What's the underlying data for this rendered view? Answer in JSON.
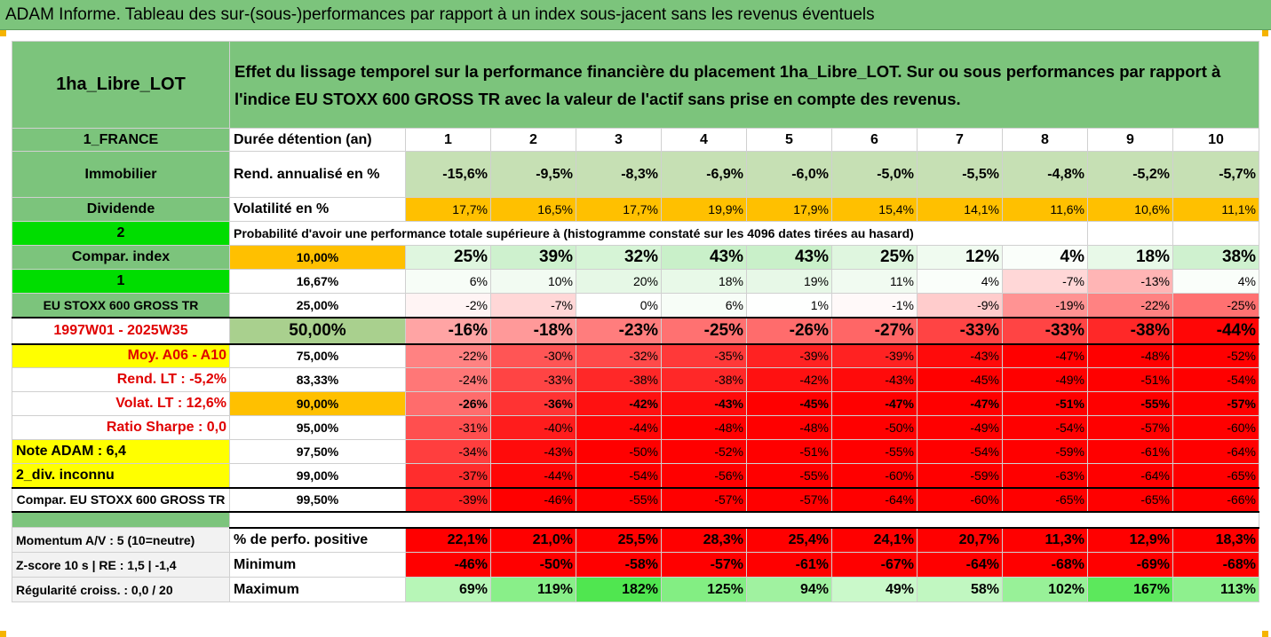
{
  "title": "ADAM Informe. Tableau des sur-(sous-)performances par rapport à un index sous-jacent sans les revenus éventuels",
  "header": {
    "name": "1ha_Libre_LOT",
    "description": "Effet du lissage temporel sur la performance financière du placement 1ha_Libre_LOT. Sur ou sous performances par rapport à l'indice EU STOXX 600 GROSS TR avec la valeur de l'actif sans prise en compte des revenus."
  },
  "colors": {
    "green": "#7cc47c",
    "light_green": "#c6e0b4",
    "bright_green": "#00dd00",
    "yellow": "#ffff00",
    "orange": "#ffc000",
    "red": "#ff0000"
  },
  "years_row": {
    "left": "1_FRANCE",
    "label": "Durée détention (an)",
    "values": [
      "1",
      "2",
      "3",
      "4",
      "5",
      "6",
      "7",
      "8",
      "9",
      "10"
    ]
  },
  "rend_row": {
    "left": "Immobilier",
    "label": "Rend. annualisé en %",
    "values": [
      "-15,6%",
      "-9,5%",
      "-8,3%",
      "-6,9%",
      "-6,0%",
      "-5,0%",
      "-5,5%",
      "-4,8%",
      "-5,2%",
      "-5,7%"
    ]
  },
  "vol_row": {
    "left": "Dividende",
    "label": "Volatilité en %",
    "values": [
      "17,7%",
      "16,5%",
      "17,7%",
      "19,9%",
      "17,9%",
      "15,4%",
      "14,1%",
      "11,6%",
      "10,6%",
      "11,1%"
    ]
  },
  "prob_row": {
    "left": "2",
    "text": "Probabilité d'avoir une performance totale supérieure à (histogramme constaté sur les 4096 dates tirées au hasard)"
  },
  "quantile_rows": [
    {
      "left": "Compar. index",
      "pct": "10,00%",
      "values": [
        "25%",
        "39%",
        "32%",
        "43%",
        "43%",
        "25%",
        "12%",
        "4%",
        "18%",
        "38%"
      ],
      "nums": [
        25,
        39,
        32,
        43,
        43,
        25,
        12,
        4,
        18,
        38
      ]
    },
    {
      "left": "1",
      "pct": "16,67%",
      "values": [
        "6%",
        "10%",
        "20%",
        "18%",
        "19%",
        "11%",
        "4%",
        "-7%",
        "-13%",
        "4%"
      ],
      "nums": [
        6,
        10,
        20,
        18,
        19,
        11,
        4,
        -7,
        -13,
        4
      ]
    },
    {
      "left": "EU STOXX 600 GROSS TR",
      "pct": "25,00%",
      "values": [
        "-2%",
        "-7%",
        "0%",
        "6%",
        "1%",
        "-1%",
        "-9%",
        "-19%",
        "-22%",
        "-25%"
      ],
      "nums": [
        -2,
        -7,
        0,
        6,
        1,
        -1,
        -9,
        -19,
        -22,
        -25
      ]
    },
    {
      "left": "1997W01 - 2025W35",
      "pct": "50,00%",
      "values": [
        "-16%",
        "-18%",
        "-23%",
        "-25%",
        "-26%",
        "-27%",
        "-33%",
        "-33%",
        "-38%",
        "-44%"
      ],
      "nums": [
        -16,
        -18,
        -23,
        -25,
        -26,
        -27,
        -33,
        -33,
        -38,
        -44
      ]
    },
    {
      "left": "Moy. A06 - A10",
      "pct": "75,00%",
      "values": [
        "-22%",
        "-30%",
        "-32%",
        "-35%",
        "-39%",
        "-39%",
        "-43%",
        "-47%",
        "-48%",
        "-52%"
      ],
      "nums": [
        -22,
        -30,
        -32,
        -35,
        -39,
        -39,
        -43,
        -47,
        -48,
        -52
      ]
    },
    {
      "left": "Rend. LT :   -5,2%",
      "pct": "83,33%",
      "values": [
        "-24%",
        "-33%",
        "-38%",
        "-38%",
        "-42%",
        "-43%",
        "-45%",
        "-49%",
        "-51%",
        "-54%"
      ],
      "nums": [
        -24,
        -33,
        -38,
        -38,
        -42,
        -43,
        -45,
        -49,
        -51,
        -54
      ]
    },
    {
      "left": "Volat. LT :   12,6%",
      "pct": "90,00%",
      "values": [
        "-26%",
        "-36%",
        "-42%",
        "-43%",
        "-45%",
        "-47%",
        "-47%",
        "-51%",
        "-55%",
        "-57%"
      ],
      "nums": [
        -26,
        -36,
        -42,
        -43,
        -45,
        -47,
        -47,
        -51,
        -55,
        -57
      ]
    },
    {
      "left": "Ratio Sharpe :    0,0",
      "pct": "95,00%",
      "values": [
        "-31%",
        "-40%",
        "-44%",
        "-48%",
        "-48%",
        "-50%",
        "-49%",
        "-54%",
        "-57%",
        "-60%"
      ],
      "nums": [
        -31,
        -40,
        -44,
        -48,
        -48,
        -50,
        -49,
        -54,
        -57,
        -60
      ]
    },
    {
      "left": "Note ADAM : 6,4",
      "pct": "97,50%",
      "values": [
        "-34%",
        "-43%",
        "-50%",
        "-52%",
        "-51%",
        "-55%",
        "-54%",
        "-59%",
        "-61%",
        "-64%"
      ],
      "nums": [
        -34,
        -43,
        -50,
        -52,
        -51,
        -55,
        -54,
        -59,
        -61,
        -64
      ]
    },
    {
      "left": "2_div. inconnu",
      "pct": "99,00%",
      "values": [
        "-37%",
        "-44%",
        "-54%",
        "-56%",
        "-55%",
        "-60%",
        "-59%",
        "-63%",
        "-64%",
        "-65%"
      ],
      "nums": [
        -37,
        -44,
        -54,
        -56,
        -55,
        -60,
        -59,
        -63,
        -64,
        -65
      ]
    },
    {
      "left": "Compar. EU STOXX 600 GROSS TR",
      "pct": "99,50%",
      "values": [
        "-39%",
        "-46%",
        "-55%",
        "-57%",
        "-57%",
        "-64%",
        "-60%",
        "-65%",
        "-65%",
        "-66%"
      ],
      "nums": [
        -39,
        -46,
        -55,
        -57,
        -57,
        -64,
        -60,
        -65,
        -65,
        -66
      ]
    }
  ],
  "stats_rows": [
    {
      "left": "Momentum A/V : 5 (10=neutre)",
      "label": "% de perfo. positive",
      "values": [
        "22,1%",
        "21,0%",
        "25,5%",
        "28,3%",
        "25,4%",
        "24,1%",
        "20,7%",
        "11,3%",
        "12,9%",
        "18,3%"
      ]
    },
    {
      "left": "Z-score 10 s  |  RE : 1,5  |  -1,4",
      "label": "Minimum",
      "values": [
        "-46%",
        "-50%",
        "-58%",
        "-57%",
        "-61%",
        "-67%",
        "-64%",
        "-68%",
        "-69%",
        "-68%"
      ]
    },
    {
      "left": "Régularité croiss. : 0,0 / 20",
      "label": "Maximum",
      "values": [
        "69%",
        "119%",
        "182%",
        "125%",
        "94%",
        "49%",
        "58%",
        "102%",
        "167%",
        "113%"
      ],
      "nums": [
        69,
        119,
        182,
        125,
        94,
        49,
        58,
        102,
        167,
        113
      ]
    }
  ]
}
